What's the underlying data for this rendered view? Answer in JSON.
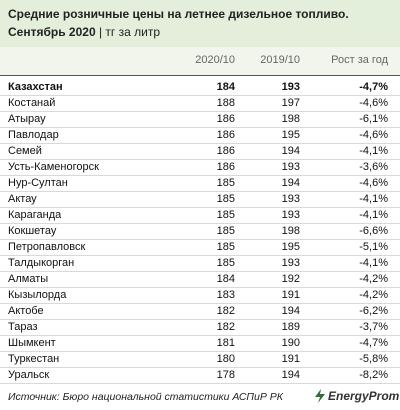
{
  "header": {
    "title": "Средние розничные цены на летнее дизельное топливо.",
    "subtitle_bold": "Сентябрь 2020",
    "subtitle_rest": "| тг за литр"
  },
  "table": {
    "columns": [
      "2020/10",
      "2019/10",
      "Рост за год"
    ],
    "rows": [
      [
        "Казахстан",
        184,
        193,
        "-4,7%"
      ],
      [
        "Костанай",
        188,
        197,
        "-4,6%"
      ],
      [
        "Атырау",
        186,
        198,
        "-6,1%"
      ],
      [
        "Павлодар",
        186,
        195,
        "-4,6%"
      ],
      [
        "Семей",
        186,
        194,
        "-4,1%"
      ],
      [
        "Усть-Каменогорск",
        186,
        193,
        "-3,6%"
      ],
      [
        "Нур-Султан",
        185,
        194,
        "-4,6%"
      ],
      [
        "Актау",
        185,
        193,
        "-4,1%"
      ],
      [
        "Караганда",
        185,
        193,
        "-4,1%"
      ],
      [
        "Кокшетау",
        185,
        198,
        "-6,6%"
      ],
      [
        "Петропавловск",
        185,
        195,
        "-5,1%"
      ],
      [
        "Талдыкорган",
        185,
        193,
        "-4,1%"
      ],
      [
        "Алматы",
        184,
        192,
        "-4,2%"
      ],
      [
        "Кызылорда",
        183,
        191,
        "-4,2%"
      ],
      [
        "Актобе",
        182,
        194,
        "-6,2%"
      ],
      [
        "Тараз",
        182,
        189,
        "-3,7%"
      ],
      [
        "Шымкент",
        181,
        190,
        "-4,7%"
      ],
      [
        "Туркестан",
        180,
        191,
        "-5,8%"
      ],
      [
        "Уральск",
        178,
        194,
        "-8,2%"
      ]
    ]
  },
  "footer": {
    "source": "Источник: Бюро национальной статистики АСПиР РК",
    "logo": "EnergyProm"
  }
}
